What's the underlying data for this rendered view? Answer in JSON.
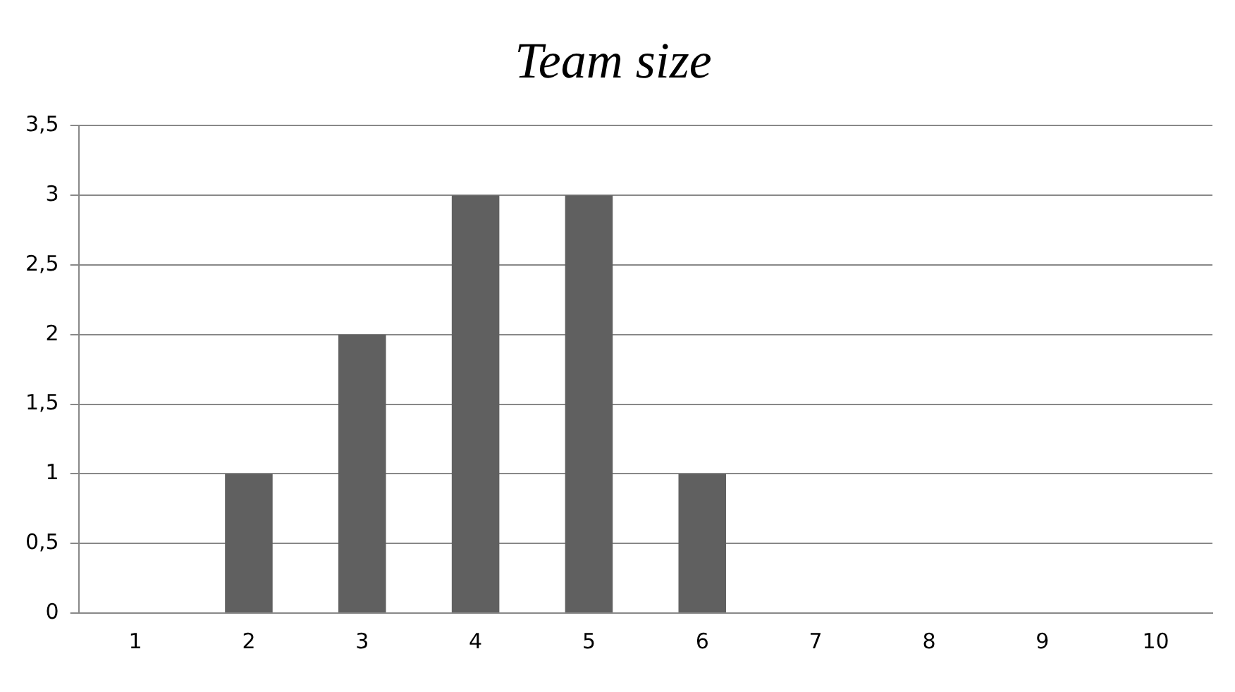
{
  "chart_data": {
    "type": "bar",
    "title": "Team size",
    "categories": [
      "1",
      "2",
      "3",
      "4",
      "5",
      "6",
      "7",
      "8",
      "9",
      "10"
    ],
    "values": [
      0,
      1,
      2,
      3,
      3,
      1,
      0,
      0,
      0,
      0
    ],
    "color": "#606060",
    "ylim": [
      0,
      3.5
    ],
    "yticks": [
      0,
      {
        "value": 0.5,
        "label": "0,5"
      },
      1,
      {
        "value": 1.5,
        "label": "1,5"
      },
      2,
      {
        "value": 2.5,
        "label": "2,5"
      },
      3,
      {
        "value": 3.5,
        "label": "3,5"
      }
    ],
    "grid": "y",
    "legend": false
  }
}
